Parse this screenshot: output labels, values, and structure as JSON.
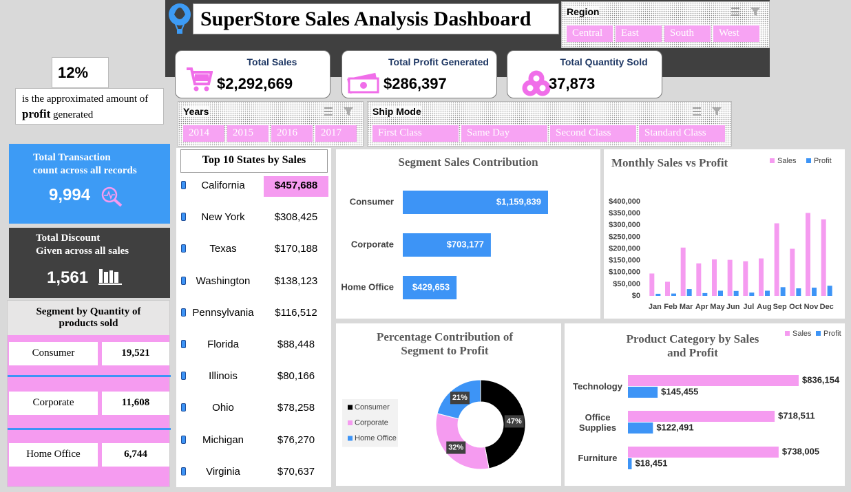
{
  "header": {
    "title": "SuperStore Sales Analysis Dashboard"
  },
  "region_slicer": {
    "title": "Region",
    "items": [
      "Central",
      "East",
      "South",
      "West"
    ]
  },
  "kpis": [
    {
      "label": "Total Sales",
      "value": "$2,292,669"
    },
    {
      "label": "Total Profit Generated",
      "value": "$286,397"
    },
    {
      "label": "Total Quantity Sold",
      "value": "37,873"
    }
  ],
  "profit_note": {
    "value": "12%",
    "before": "is the approximated amount of",
    "emphasis": "profit",
    "after": "generated"
  },
  "years_slicer": {
    "title": "Years",
    "items": [
      "2014",
      "2015",
      "2016",
      "2017"
    ]
  },
  "ship_mode_slicer": {
    "title": "Ship Mode",
    "items": [
      "First Class",
      "Same Day",
      "Second Class",
      "Standard Class"
    ]
  },
  "transactions": {
    "label": [
      "Total Transaction",
      "count across all records"
    ],
    "value": "9,994"
  },
  "discount": {
    "label": [
      "Total Discount",
      "Given across all sales"
    ],
    "value": "1,561"
  },
  "segment_quantity": {
    "title": "Segment by Quantity of products sold",
    "rows": [
      [
        "Consumer",
        "19,521"
      ],
      [
        "Corporate",
        "11,608"
      ],
      [
        "Home Office",
        "6,744"
      ]
    ]
  },
  "top_states": {
    "title": "Top 10 States by Sales",
    "rows": [
      [
        "California",
        "$457,688"
      ],
      [
        "New York",
        "$308,425"
      ],
      [
        "Texas",
        "$170,188"
      ],
      [
        "Washington",
        "$138,123"
      ],
      [
        "Pennsylvania",
        "$116,512"
      ],
      [
        "Florida",
        "$88,448"
      ],
      [
        "Illinois",
        "$80,166"
      ],
      [
        "Ohio",
        "$78,258"
      ],
      [
        "Michigan",
        "$76,270"
      ],
      [
        "Virginia",
        "$70,637"
      ]
    ]
  },
  "chart_data": [
    {
      "type": "bar",
      "orientation": "horizontal",
      "title": "Segment Sales Contribution",
      "categories": [
        "Consumer",
        "Corporate",
        "Home Office"
      ],
      "values": [
        1159839,
        703177,
        429653
      ],
      "value_labels": [
        "$1,159,839",
        "$703,177",
        "$429,653"
      ],
      "color": "#3d94f6"
    },
    {
      "type": "bar",
      "title": "Monthly Sales vs Profit",
      "categories": [
        "Jan",
        "Feb",
        "Mar",
        "Apr",
        "May",
        "Jun",
        "Jul",
        "Aug",
        "Sep",
        "Oct",
        "Nov",
        "Dec"
      ],
      "series": [
        {
          "name": "Sales",
          "color": "#f59bf0",
          "values": [
            95000,
            60000,
            205000,
            138000,
            155000,
            153000,
            147000,
            159000,
            308000,
            200000,
            352000,
            325000
          ]
        },
        {
          "name": "Profit",
          "color": "#3d94f6",
          "values": [
            9000,
            10000,
            29000,
            12000,
            22000,
            21000,
            14000,
            22000,
            37000,
            32000,
            35000,
            43000
          ]
        }
      ],
      "ylim": [
        0,
        400000
      ],
      "yticks": [
        {
          "value": 0,
          "label": "$0"
        },
        {
          "value": 50000,
          "label": "$50,000"
        },
        {
          "value": 100000,
          "label": "$100,000"
        },
        {
          "value": 150000,
          "label": "$150,000"
        },
        {
          "value": 200000,
          "label": "$200,000"
        },
        {
          "value": 250000,
          "label": "$250,000"
        },
        {
          "value": 300000,
          "label": "$300,000"
        },
        {
          "value": 350000,
          "label": "$350,000"
        },
        {
          "value": 400000,
          "label": "$400,000"
        }
      ],
      "grid": false,
      "legend": "top-right"
    },
    {
      "type": "doughnut",
      "title": "Percentage Contribution of Segment to Profit",
      "categories": [
        "Consumer",
        "Corporate",
        "Home Office"
      ],
      "values": [
        47,
        32,
        21
      ],
      "value_labels": [
        "47%",
        "32%",
        "21%"
      ],
      "colors": [
        "#000000",
        "#f59bf0",
        "#3d94f6"
      ],
      "legend": "left"
    },
    {
      "type": "bar",
      "orientation": "horizontal",
      "title": "Product Category by Sales and Profit",
      "categories": [
        "Technology",
        "Office Supplies",
        "Furniture"
      ],
      "series": [
        {
          "name": "Sales",
          "color": "#f59bf0",
          "values": [
            836154,
            718511,
            738005
          ],
          "value_labels": [
            "$836,154",
            "$718,511",
            "$738,005"
          ]
        },
        {
          "name": "Profit",
          "color": "#3d94f6",
          "values": [
            145455,
            122491,
            18451
          ],
          "value_labels": [
            "$145,455",
            "$122,491",
            "$18,451"
          ]
        }
      ],
      "legend": "top-right"
    }
  ]
}
